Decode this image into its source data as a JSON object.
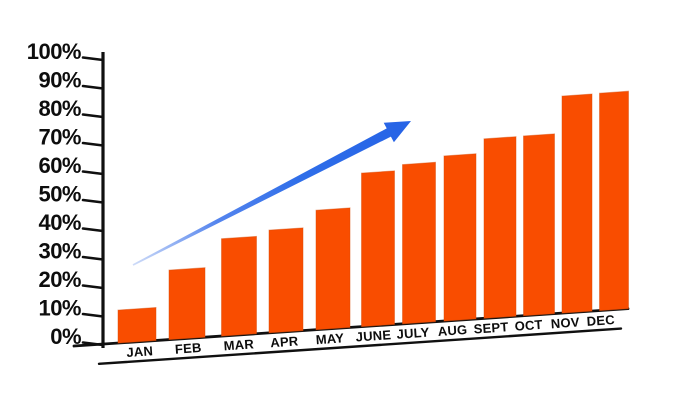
{
  "chart_data": {
    "type": "bar",
    "title": "",
    "xlabel": "",
    "ylabel": "",
    "unit": "%",
    "categories": [
      "JAN",
      "FEB",
      "MAR",
      "APR",
      "MAY",
      "JUNE",
      "JULY",
      "AUG",
      "SEPT",
      "OCT",
      "NOV",
      "DEC"
    ],
    "values": [
      12,
      26,
      37,
      40,
      47,
      60,
      63,
      66,
      72,
      73,
      87,
      88
    ],
    "ylim": [
      0,
      100
    ],
    "ytick_step": 10,
    "ytick_labels": [
      "100%",
      "90%",
      "80%",
      "70%",
      "60%",
      "50%",
      "40%",
      "30%",
      "20%",
      "10%",
      "0%"
    ],
    "grid": false,
    "legend": null,
    "annotations": [
      {
        "kind": "trend-arrow",
        "direction": "up-right",
        "meaning": "growth trend"
      }
    ],
    "colors": {
      "background": "#ffffff",
      "bar_fill": "#f94d00",
      "bar_edge": "#d84a04",
      "axis": "#101010",
      "text": "#0d0d0d",
      "arrow_head": "#2b6ae8",
      "arrow_tail": "#c9d9f7"
    }
  }
}
